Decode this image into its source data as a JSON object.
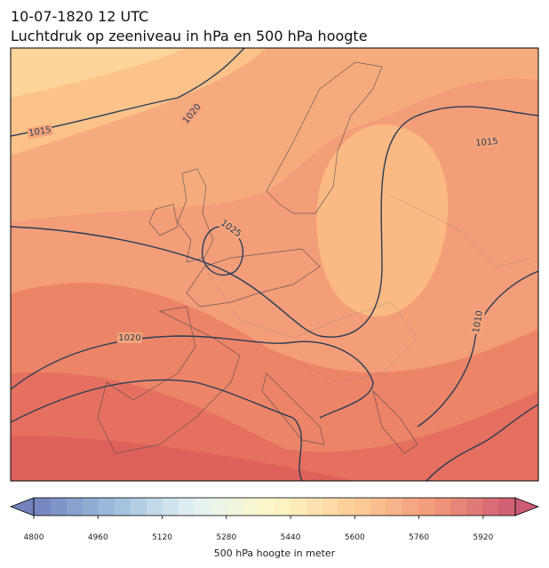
{
  "header": {
    "title": "10-07-1820 12 UTC",
    "subtitle": "Luchtdruk op zeeniveau in hPa en 500 hPa hoogte"
  },
  "isobar_labels": [
    1015,
    1020,
    1025,
    1015,
    1020,
    1010
  ],
  "colorbar": {
    "label": "500 hPa hoogte in meter",
    "lim": [
      4800,
      6000
    ],
    "step": 40,
    "ticks": [
      4800,
      4960,
      5120,
      5280,
      5440,
      5600,
      5760,
      5920
    ],
    "colors": [
      "#5a6cb2",
      "#8db3d5",
      "#dff0f2",
      "#fdf6bc",
      "#fdc486",
      "#ef8763",
      "#c43e5a"
    ]
  }
}
